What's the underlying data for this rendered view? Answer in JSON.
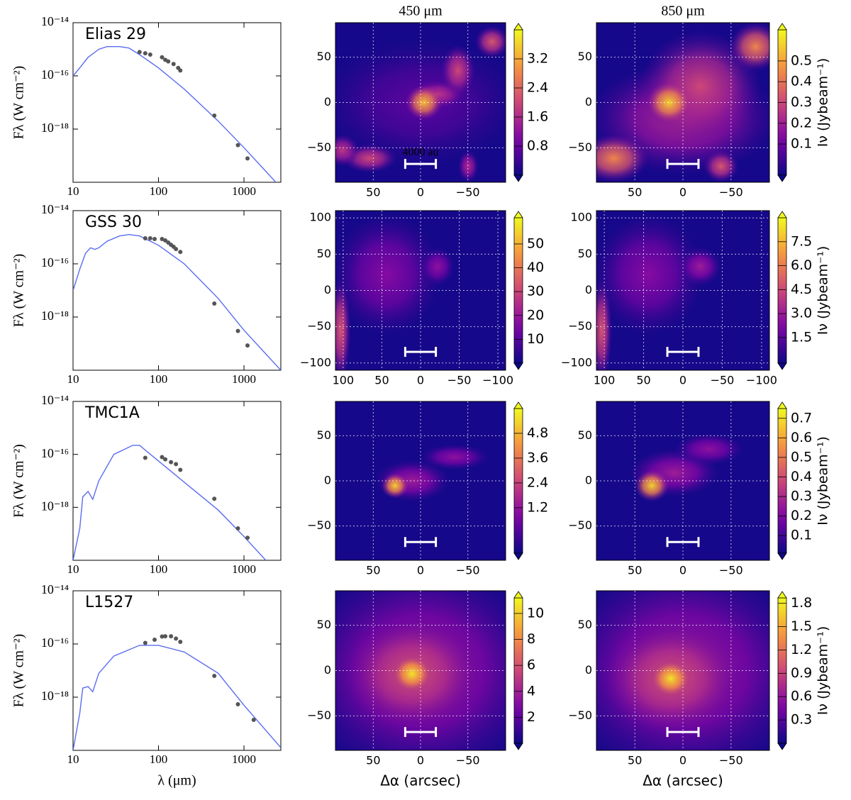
{
  "chart_data": [
    {
      "type": "sed",
      "text": "Elias 29",
      "ylabel": "Fλ (W cm⁻²)",
      "xlim": [
        10,
        2700
      ],
      "ylim": [
        1e-20,
        1e-14
      ],
      "log": true,
      "xticks": [
        10,
        100,
        1000
      ],
      "yticks": [
        {
          "value": 1e-14,
          "label": "10⁻¹⁴"
        },
        {
          "value": 1e-16,
          "label": "10⁻¹⁶"
        },
        {
          "value": 1e-18,
          "label": "10⁻¹⁸"
        }
      ],
      "model": {
        "color": "#5a6cf0",
        "x": [
          10,
          12,
          15,
          20,
          25,
          35,
          45,
          60,
          100,
          200,
          500,
          1000,
          2700
        ],
        "y": [
          1e-16,
          2e-16,
          5e-16,
          1e-15,
          1.26e-15,
          1.26e-15,
          1.12e-15,
          6.3e-16,
          2e-16,
          3.2e-17,
          2e-18,
          2e-19,
          6.3e-21
        ]
      },
      "points": {
        "color": "#555555",
        "x": [
          60,
          70,
          80,
          110,
          120,
          130,
          150,
          170,
          180,
          450,
          850,
          1100
        ],
        "y": [
          7.9e-16,
          7.1e-16,
          6.3e-16,
          5e-16,
          4e-16,
          3.5e-16,
          2.8e-16,
          2e-16,
          1.6e-16,
          3.2e-18,
          2.5e-19,
          7.9e-20
        ]
      }
    },
    {
      "type": "contour",
      "title": "450 μm",
      "cmap": "plasma",
      "xlim": [
        90,
        -90
      ],
      "ylim": [
        -88,
        88
      ],
      "xticks": [
        50,
        0,
        {
          "value": -50,
          "label": "−50"
        }
      ],
      "yticks": [
        {
          "value": -50,
          "label": "−50"
        },
        0,
        50
      ],
      "clim": [
        0,
        4
      ],
      "cticks": [
        0.8,
        1.6,
        2.4,
        3.2
      ],
      "scale_bar": "4000 au"
    },
    {
      "type": "contour",
      "title": "850 μm",
      "cmap": "plasma",
      "xlim": [
        90,
        -90
      ],
      "ylim": [
        -88,
        88
      ],
      "xticks": [
        50,
        0,
        {
          "value": -50,
          "label": "−50"
        }
      ],
      "yticks": [
        {
          "value": -50,
          "label": "−50"
        },
        0,
        50
      ],
      "clim": [
        -0.05,
        0.65
      ],
      "cticks": [
        0.1,
        0.2,
        0.3,
        0.4,
        0.5
      ],
      "colorbar_label": "Iν (Jybeam⁻¹)"
    },
    {
      "type": "sed",
      "text": "GSS 30",
      "ylabel": "Fλ (W cm⁻²)",
      "xlim": [
        10,
        2700
      ],
      "ylim": [
        1e-20,
        1e-14
      ],
      "log": true,
      "xticks": [
        10,
        100,
        1000
      ],
      "yticks": [
        {
          "value": 1e-14,
          "label": "10⁻¹⁴"
        },
        {
          "value": 1e-16,
          "label": "10⁻¹⁶"
        },
        {
          "value": 1e-18,
          "label": "10⁻¹⁸"
        }
      ],
      "model": {
        "color": "#5a6cf0",
        "x": [
          10,
          12,
          14,
          16,
          18,
          20,
          25,
          35,
          45,
          60,
          100,
          200,
          500,
          1000,
          2700
        ],
        "y": [
          1e-17,
          6.3e-17,
          2.5e-16,
          4e-16,
          3.5e-16,
          4e-16,
          7.1e-16,
          1.12e-15,
          1.26e-15,
          1.12e-15,
          5e-16,
          1e-16,
          5e-18,
          3.2e-19,
          1e-20
        ]
      },
      "points": {
        "color": "#555555",
        "x": [
          70,
          80,
          90,
          110,
          120,
          130,
          140,
          150,
          160,
          180,
          450,
          850,
          1100
        ],
        "y": [
          9.1e-16,
          9.1e-16,
          8.6e-16,
          8.6e-16,
          7.6e-16,
          6.3e-16,
          5.2e-16,
          4.4e-16,
          3.6e-16,
          2.8e-16,
          3.2e-18,
          3e-19,
          8.5e-20
        ]
      }
    },
    {
      "type": "contour",
      "cmap": "plasma",
      "xlim": [
        110,
        -110
      ],
      "ylim": [
        -110,
        110
      ],
      "xticks": [
        100,
        50,
        0,
        {
          "value": -50,
          "label": "−50"
        },
        {
          "value": -100,
          "label": "−100"
        }
      ],
      "yticks": [
        {
          "value": -100,
          "label": "−100"
        },
        {
          "value": -50,
          "label": "−50"
        },
        0,
        50,
        100
      ],
      "clim": [
        0,
        61
      ],
      "cticks": [
        10,
        20,
        30,
        40,
        50
      ]
    },
    {
      "type": "contour",
      "cmap": "plasma",
      "xlim": [
        110,
        -110
      ],
      "ylim": [
        -110,
        110
      ],
      "xticks": [
        100,
        50,
        0,
        {
          "value": -50,
          "label": "−50"
        },
        {
          "value": -100,
          "label": "−100"
        }
      ],
      "yticks": [
        {
          "value": -100,
          "label": "−100"
        },
        {
          "value": -50,
          "label": "−50"
        },
        0,
        50,
        100
      ],
      "clim": [
        -0.1,
        9.0
      ],
      "cticks": [
        1.5,
        {
          "value": 3,
          "label": "3.0"
        },
        4.5,
        {
          "value": 6,
          "label": "6.0"
        },
        7.5
      ],
      "colorbar_label": "Iν (Jybeam⁻¹)"
    },
    {
      "type": "sed",
      "text": "TMC1A",
      "ylabel": "Fλ (W cm⁻²)",
      "xlim": [
        10,
        2700
      ],
      "ylim": [
        1e-20,
        1e-14
      ],
      "log": true,
      "xticks": [
        10,
        100,
        1000
      ],
      "yticks": [
        {
          "value": 1e-14,
          "label": "10⁻¹⁴"
        },
        {
          "value": 1e-16,
          "label": "10⁻¹⁶"
        },
        {
          "value": 1e-18,
          "label": "10⁻¹⁸"
        }
      ],
      "model": {
        "color": "#5a6cf0",
        "x": [
          10,
          12,
          13,
          15,
          17,
          20,
          30,
          50,
          60,
          100,
          200,
          500,
          1000,
          1800
        ],
        "y": [
          1e-20,
          1.6e-19,
          2.5e-18,
          4e-18,
          2e-18,
          1e-17,
          1e-16,
          2.2e-16,
          2.2e-16,
          5.6e-17,
          8.9e-18,
          7.9e-19,
          7.9e-20,
          1e-20
        ]
      },
      "points": {
        "color": "#555555",
        "x": [
          70,
          110,
          120,
          140,
          160,
          180,
          450,
          850,
          1100
        ],
        "y": [
          7.4e-17,
          7.9e-17,
          6.5e-17,
          5.1e-17,
          4.3e-17,
          2.6e-17,
          2.1e-18,
          1.6e-19,
          7.1e-20
        ]
      }
    },
    {
      "type": "contour",
      "cmap": "plasma",
      "xlim": [
        90,
        -90
      ],
      "ylim": [
        -88,
        88
      ],
      "xticks": [
        50,
        0,
        {
          "value": -50,
          "label": "−50"
        }
      ],
      "yticks": [
        {
          "value": -50,
          "label": "−50"
        },
        0,
        50
      ],
      "clim": [
        -1.0,
        6.0
      ],
      "cticks": [
        1.2,
        2.4,
        3.6,
        4.8
      ]
    },
    {
      "type": "contour",
      "cmap": "plasma",
      "xlim": [
        90,
        -90
      ],
      "ylim": [
        -88,
        88
      ],
      "xticks": [
        50,
        0,
        {
          "value": -50,
          "label": "−50"
        }
      ],
      "yticks": [
        {
          "value": -50,
          "label": "−50"
        },
        0,
        50
      ],
      "clim": [
        0.01,
        0.75
      ],
      "cticks": [
        0.1,
        0.2,
        0.3,
        0.4,
        0.5,
        0.6,
        0.7
      ],
      "colorbar_label": "Iν (Jybeam⁻¹)"
    },
    {
      "type": "sed",
      "text": "L1527",
      "ylabel": "Fλ (W cm⁻²)",
      "xlabel": "λ (μm)",
      "xlim": [
        10,
        2700
      ],
      "ylim": [
        1e-20,
        1e-14
      ],
      "log": true,
      "xticks": [
        10,
        100,
        1000
      ],
      "yticks": [
        {
          "value": 1e-14,
          "label": "10⁻¹⁴"
        },
        {
          "value": 1e-16,
          "label": "10⁻¹⁶"
        },
        {
          "value": 1e-18,
          "label": "10⁻¹⁸"
        }
      ],
      "model": {
        "color": "#5a6cf0",
        "x": [
          10,
          12,
          13,
          15,
          17,
          20,
          30,
          60,
          100,
          200,
          500,
          1000,
          2700
        ],
        "y": [
          1e-20,
          2.5e-19,
          2.2e-18,
          2.5e-18,
          1.6e-18,
          7.9e-18,
          3.5e-17,
          8.9e-17,
          8.9e-17,
          5e-17,
          7.9e-18,
          5e-19,
          1.26e-20
        ]
      },
      "points": {
        "color": "#555555",
        "x": [
          70,
          90,
          110,
          120,
          140,
          160,
          180,
          450,
          850,
          1300
        ],
        "y": [
          1.1e-16,
          1.45e-16,
          1.9e-16,
          1.95e-16,
          1.95e-16,
          1.6e-16,
          1.2e-16,
          6.3e-18,
          5.4e-19,
          1.4e-19
        ]
      }
    },
    {
      "type": "contour",
      "cmap": "plasma",
      "xlabel": "Δα (arcsec)",
      "xlim": [
        90,
        -90
      ],
      "ylim": [
        -88,
        88
      ],
      "xticks": [
        50,
        0,
        {
          "value": -50,
          "label": "−50"
        }
      ],
      "yticks": [
        {
          "value": -50,
          "label": "−50"
        },
        0,
        50
      ],
      "clim": [
        0,
        11.2
      ],
      "cticks": [
        2,
        4,
        6,
        8,
        10
      ]
    },
    {
      "type": "contour",
      "cmap": "plasma",
      "xlabel": "Δα (arcsec)",
      "xlim": [
        90,
        -90
      ],
      "ylim": [
        -88,
        88
      ],
      "xticks": [
        50,
        0,
        {
          "value": -50,
          "label": "−50"
        }
      ],
      "yticks": [
        {
          "value": -50,
          "label": "−50"
        },
        0,
        50
      ],
      "clim": [
        0,
        1.87
      ],
      "cticks": [
        0.3,
        0.6,
        0.9,
        1.2,
        1.5,
        1.8
      ],
      "colorbar_label": "Iν (Jybeam⁻¹)"
    }
  ]
}
